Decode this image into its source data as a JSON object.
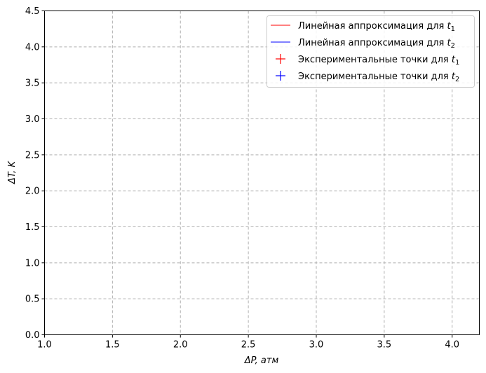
{
  "chart_data": {
    "type": "line",
    "xlabel": "ΔP, атм",
    "ylabel": "ΔT, K",
    "xlim": [
      1.0,
      4.2
    ],
    "ylim": [
      0.0,
      4.5
    ],
    "xticks": [
      "1.0",
      "1.5",
      "2.0",
      "2.5",
      "3.0",
      "3.5",
      "4.0"
    ],
    "xtick_values": [
      1.0,
      1.5,
      2.0,
      2.5,
      3.0,
      3.5,
      4.0
    ],
    "yticks": [
      "0.0",
      "0.5",
      "1.0",
      "1.5",
      "2.0",
      "2.5",
      "3.0",
      "3.5",
      "4.0",
      "4.5"
    ],
    "ytick_values": [
      0.0,
      0.5,
      1.0,
      1.5,
      2.0,
      2.5,
      3.0,
      3.5,
      4.0,
      4.5
    ],
    "grid": true,
    "legend_position": "top-right",
    "series": [
      {
        "name": "Линейная аппроксимация для t",
        "sub": "1",
        "kind": "line",
        "color": "#ff0000",
        "x": [],
        "y": []
      },
      {
        "name": "Линейная аппроксимация для t",
        "sub": "2",
        "kind": "line",
        "color": "#0000ff",
        "x": [],
        "y": []
      },
      {
        "name": "Экспериментальные точки для t",
        "sub": "1",
        "kind": "marker",
        "color": "#ff0000",
        "x": [],
        "y": []
      },
      {
        "name": "Экспериментальные точки для t",
        "sub": "2",
        "kind": "marker",
        "color": "#0000ff",
        "x": [],
        "y": []
      }
    ]
  }
}
